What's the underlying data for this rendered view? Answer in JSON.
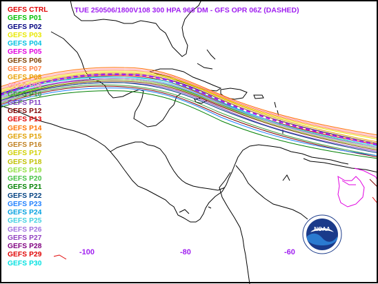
{
  "title": "TUE 250506/1800V108  300 HPA 968 DM - GFS OPR 06Z (DASHED)",
  "legend": [
    {
      "label": "GEFS CTRL",
      "color": "#e00000"
    },
    {
      "label": "GEFS P01",
      "color": "#00c000"
    },
    {
      "label": "GEFS P02",
      "color": "#000080"
    },
    {
      "label": "GEFS P03",
      "color": "#e8e800"
    },
    {
      "label": "GEFS P04",
      "color": "#00c0e0"
    },
    {
      "label": "GEFS P05",
      "color": "#e000e0"
    },
    {
      "label": "GEFS P06",
      "color": "#804000"
    },
    {
      "label": "GEFS P07",
      "color": "#ff8040"
    },
    {
      "label": "GEFS P08",
      "color": "#e8a000"
    },
    {
      "label": "GEFS P09",
      "color": "#ff9db5"
    },
    {
      "label": "GEFS P10",
      "color": "#40a040"
    },
    {
      "label": "GEFS P11",
      "color": "#8040c0"
    },
    {
      "label": "GEFS P12",
      "color": "#800000"
    },
    {
      "label": "GEFS P13",
      "color": "#e00000"
    },
    {
      "label": "GEFS P14",
      "color": "#ff7000"
    },
    {
      "label": "GEFS P15",
      "color": "#e0a000"
    },
    {
      "label": "GEFS P16",
      "color": "#c08020"
    },
    {
      "label": "GEFS P17",
      "color": "#d0d000"
    },
    {
      "label": "GEFS P18",
      "color": "#c0c000"
    },
    {
      "label": "GEFS P19",
      "color": "#90e040"
    },
    {
      "label": "GEFS P20",
      "color": "#40c040"
    },
    {
      "label": "GEFS P21",
      "color": "#008000"
    },
    {
      "label": "GEFS P22",
      "color": "#004080"
    },
    {
      "label": "GEFS P23",
      "color": "#2080ff"
    },
    {
      "label": "GEFS P24",
      "color": "#00a0e0"
    },
    {
      "label": "GEFS P25",
      "color": "#40d0e0"
    },
    {
      "label": "GEFS P26",
      "color": "#a070e0"
    },
    {
      "label": "GEFS P27",
      "color": "#9040c0"
    },
    {
      "label": "GEFS P28",
      "color": "#800080"
    },
    {
      "label": "GEFS P29",
      "color": "#e00000"
    },
    {
      "label": "GEFS P30",
      "color": "#00e0e0"
    }
  ],
  "longitude_labels": [
    "-100",
    "-80",
    "-60"
  ],
  "colors": {
    "frame": "#000000",
    "title": "#a020f0",
    "opr_dashed": "#a020f0",
    "coastline": "#000000"
  },
  "logo": {
    "text": "NOAA",
    "icon": "noaa-logo"
  }
}
